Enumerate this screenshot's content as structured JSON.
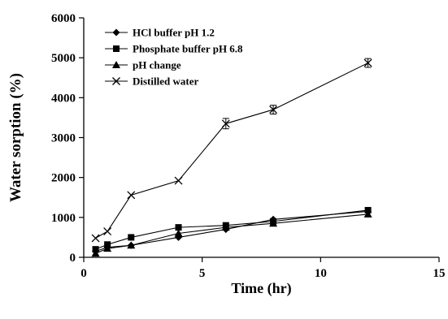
{
  "chart_data": {
    "type": "line",
    "xlabel": "Time (hr)",
    "ylabel": "Water sorption (%)",
    "xlim": [
      0,
      15
    ],
    "ylim": [
      0,
      6000
    ],
    "x_ticks": [
      0,
      5,
      10,
      15
    ],
    "y_ticks": [
      0,
      1000,
      2000,
      3000,
      4000,
      5000,
      6000
    ],
    "grid": false,
    "legend_position": "top-left",
    "series": [
      {
        "name": "HCl buffer pH 1.2",
        "marker": "diamond",
        "x": [
          0.5,
          1,
          2,
          4,
          6,
          8,
          12
        ],
        "y": [
          150,
          250,
          300,
          500,
          700,
          950,
          1150
        ]
      },
      {
        "name": "Phosphate buffer pH 6.8",
        "marker": "square",
        "x": [
          0.5,
          1,
          2,
          4,
          6,
          8,
          12
        ],
        "y": [
          200,
          320,
          500,
          750,
          800,
          900,
          1180
        ]
      },
      {
        "name": "pH change",
        "marker": "triangle",
        "x": [
          0.5,
          1,
          2,
          4,
          6,
          8,
          12
        ],
        "y": [
          100,
          220,
          300,
          600,
          750,
          850,
          1080
        ]
      },
      {
        "name": "Distilled water",
        "marker": "x",
        "x": [
          0.5,
          1,
          2,
          4,
          6,
          8,
          12
        ],
        "y": [
          480,
          650,
          1560,
          1920,
          3350,
          3700,
          4870
        ],
        "error": [
          0,
          0,
          0,
          0,
          130,
          110,
          110
        ]
      }
    ]
  }
}
